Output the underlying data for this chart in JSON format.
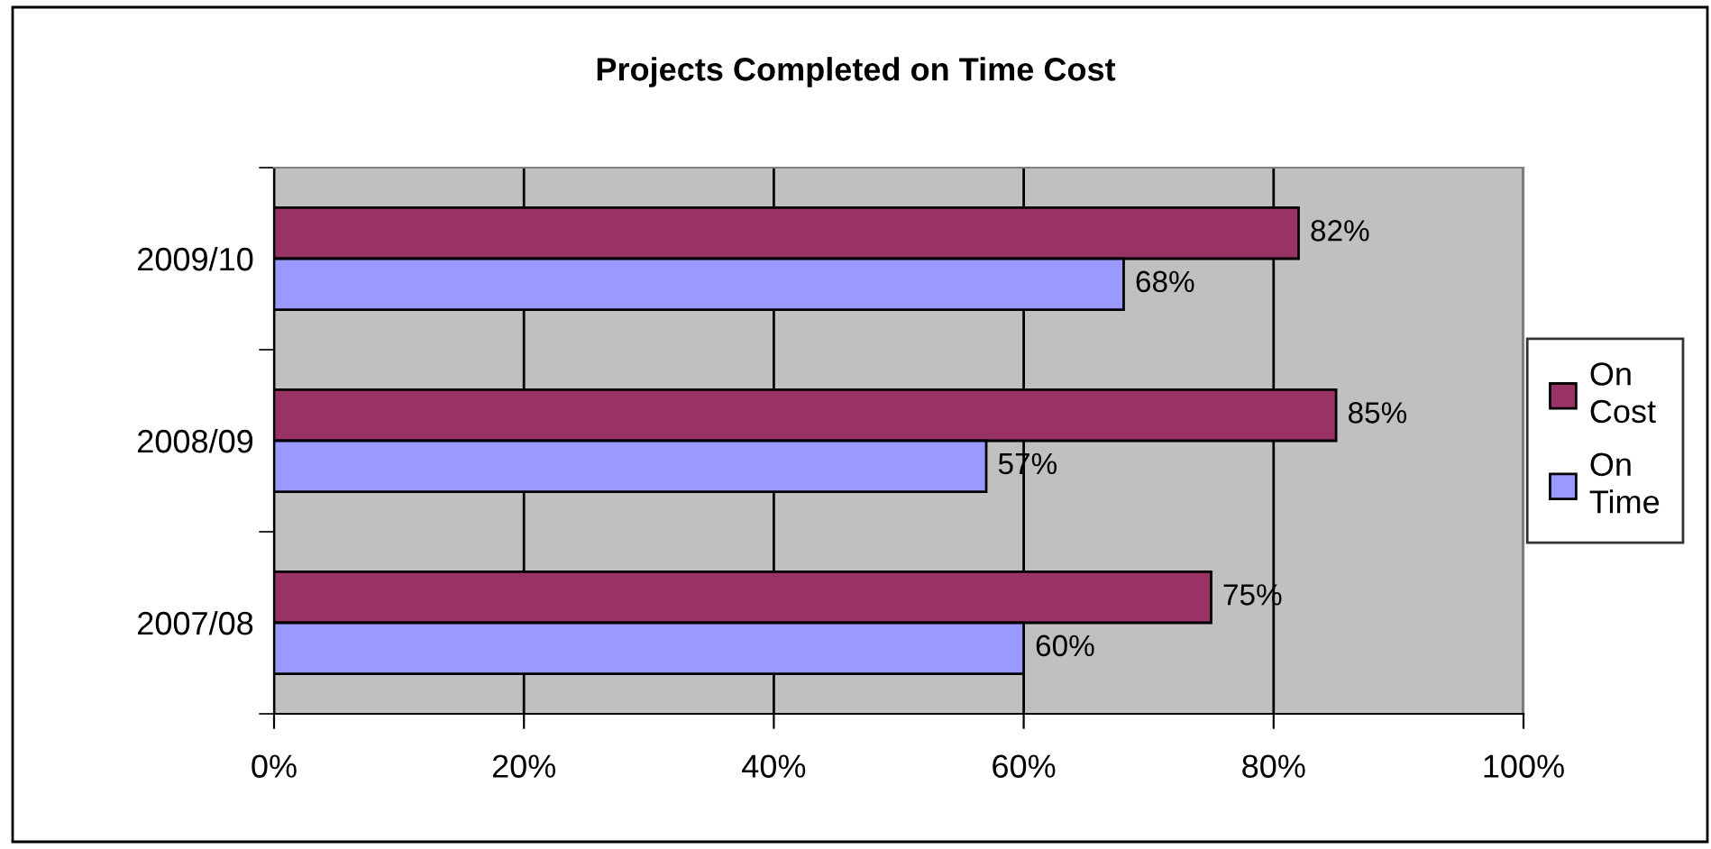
{
  "chart_data": {
    "type": "bar",
    "orientation": "horizontal",
    "title": "Projects Completed on Time Cost",
    "categories": [
      "2009/10",
      "2008/09",
      "2007/08"
    ],
    "series": [
      {
        "name": "On Cost",
        "color": "#993366",
        "values": [
          82,
          85,
          75
        ],
        "value_labels": [
          "82%",
          "85%",
          "75%"
        ]
      },
      {
        "name": "On Time",
        "color": "#9999ff",
        "values": [
          68,
          57,
          60
        ],
        "value_labels": [
          "68%",
          "57%",
          "60%"
        ]
      }
    ],
    "xlim": [
      0,
      100
    ],
    "xticks": [
      {
        "value": 0,
        "label": "0%"
      },
      {
        "value": 20,
        "label": "20%"
      },
      {
        "value": 40,
        "label": "40%"
      },
      {
        "value": 60,
        "label": "60%"
      },
      {
        "value": 80,
        "label": "80%"
      },
      {
        "value": 100,
        "label": "100%"
      }
    ],
    "grid": "x",
    "legend": "right"
  }
}
